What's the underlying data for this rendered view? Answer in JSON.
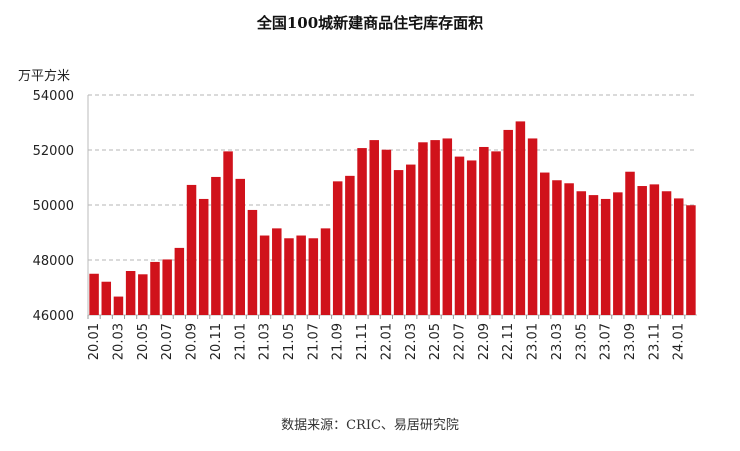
{
  "chart_data": {
    "type": "bar",
    "title": "全国100城新建商品住宅库存面积",
    "ylabel": "万平方米",
    "xlabel": "",
    "source": "数据来源：CRIC、易居研究院",
    "ylim": [
      46000,
      54000
    ],
    "yticks": [
      46000,
      48000,
      50000,
      52000,
      54000
    ],
    "grid": true,
    "bar_color": "#D0121B",
    "categories": [
      "20.01",
      "20.02",
      "20.03",
      "20.04",
      "20.05",
      "20.06",
      "20.07",
      "20.08",
      "20.09",
      "20.10",
      "20.11",
      "20.12",
      "21.01",
      "21.02",
      "21.03",
      "21.04",
      "21.05",
      "21.06",
      "21.07",
      "21.08",
      "21.09",
      "21.10",
      "21.11",
      "21.12",
      "22.01",
      "22.02",
      "22.03",
      "22.04",
      "22.05",
      "22.06",
      "22.07",
      "22.08",
      "22.09",
      "22.10",
      "22.11",
      "22.12",
      "23.01",
      "23.02",
      "23.03",
      "23.04",
      "23.05",
      "23.06",
      "23.07",
      "23.08",
      "23.09",
      "23.10",
      "23.11",
      "23.12",
      "24.01",
      "24.02"
    ],
    "shown_tick_labels": [
      "20.01",
      "20.03",
      "20.05",
      "20.07",
      "20.09",
      "20.11",
      "21.01",
      "21.03",
      "21.05",
      "21.07",
      "21.09",
      "21.11",
      "22.01",
      "22.03",
      "22.05",
      "22.07",
      "22.09",
      "22.11",
      "23.01",
      "23.03",
      "23.05",
      "23.07",
      "23.09",
      "23.11",
      "24.01"
    ],
    "values": [
      47500,
      47210,
      46670,
      47600,
      47480,
      47930,
      48020,
      48440,
      50730,
      50220,
      51020,
      51950,
      50950,
      49820,
      48890,
      49150,
      48790,
      48890,
      48790,
      49150,
      50860,
      51060,
      52070,
      52360,
      52010,
      51270,
      51470,
      52280,
      52360,
      52420,
      51760,
      51620,
      52110,
      51950,
      52730,
      53040,
      52420,
      51180,
      50900,
      50790,
      50500,
      50360,
      50220,
      50460,
      51210,
      50690,
      50750,
      50500,
      50240,
      49990
    ]
  }
}
